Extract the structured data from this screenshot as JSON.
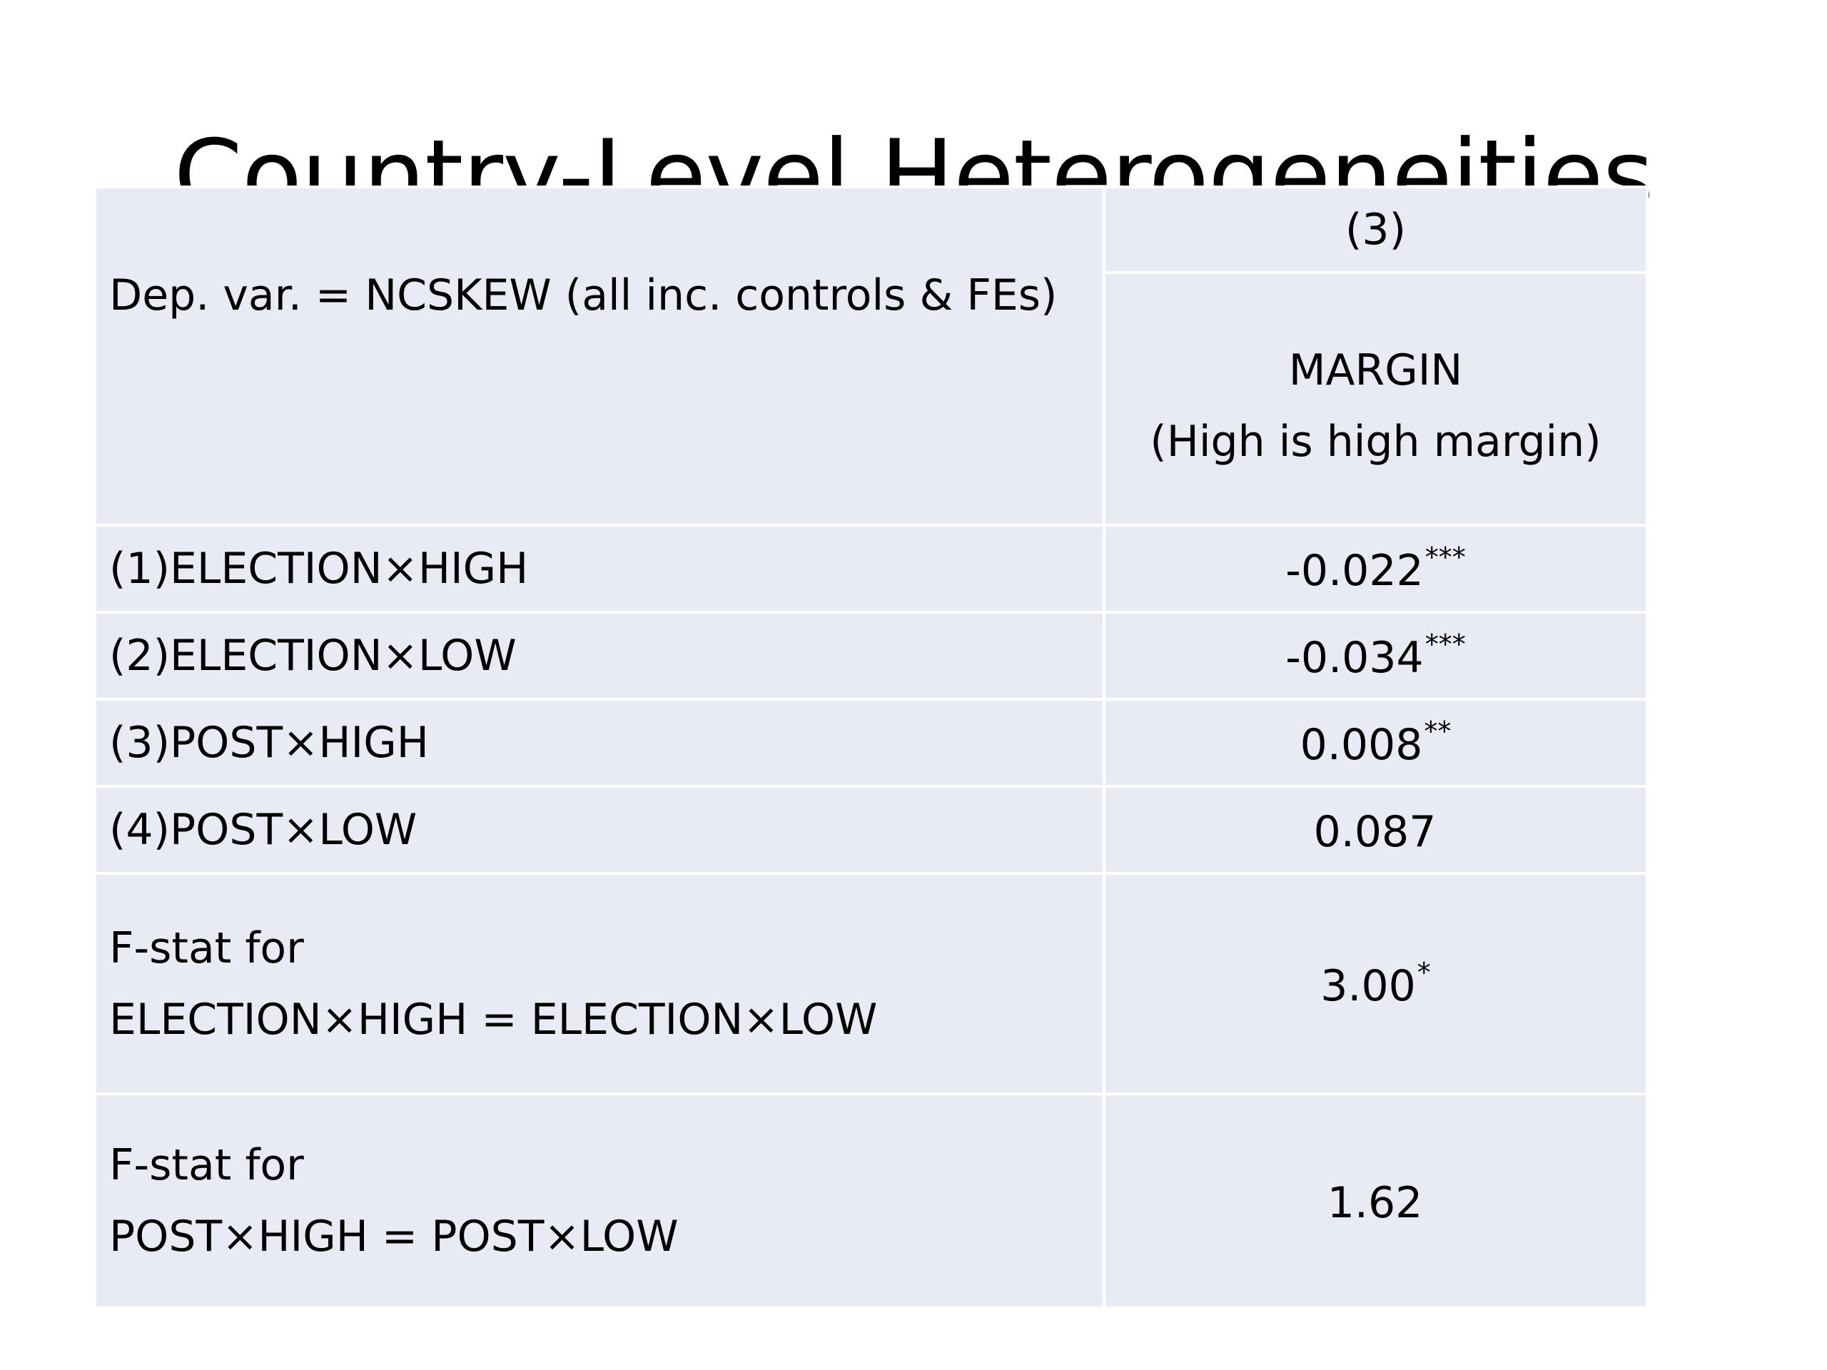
{
  "title": "Country-Level Heterogeneities",
  "table": {
    "column_number": "(3)",
    "header_label": "Dep. var. = NCSKEW (all inc. controls & FEs)",
    "column_title": "MARGIN",
    "column_subtitle": "(High is high margin)",
    "rows": [
      {
        "label": "(1)ELECTION×HIGH",
        "value": "-0.022",
        "stars": "***"
      },
      {
        "label": "(2)ELECTION×LOW",
        "value": "-0.034",
        "stars": "***"
      },
      {
        "label": "(3)POST×HIGH",
        "value": "0.008",
        "stars": "**"
      },
      {
        "label": "(4)POST×LOW",
        "value": "0.087",
        "stars": ""
      }
    ],
    "fstats": [
      {
        "label_line1": "F-stat for",
        "label_line2": "ELECTION×HIGH = ELECTION×LOW",
        "value": "3.00",
        "stars": "*"
      },
      {
        "label_line1": "F-stat for",
        "label_line2": "POST×HIGH = POST×LOW",
        "value": "1.62",
        "stars": ""
      }
    ]
  }
}
